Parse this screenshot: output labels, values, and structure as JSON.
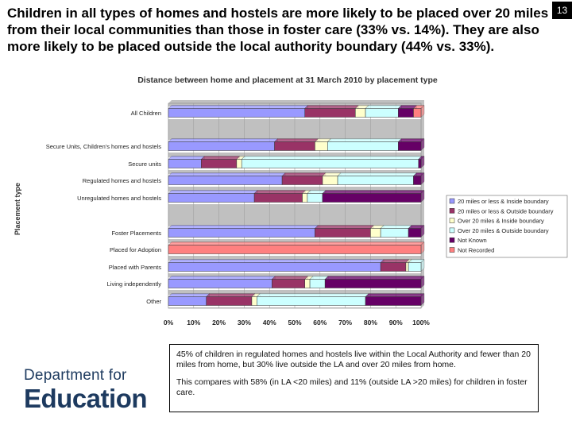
{
  "headline": "Children in all types of homes and hostels are more likely to be placed over 20 miles from their local communities than those in foster care (33% vs. 14%). They are also more likely to be placed outside the local authority boundary (44% vs. 33%).",
  "page_number": "13",
  "note": {
    "p1": "45% of children in regulated homes and hostels live within the Local Authority and fewer than 20 miles from home, but 30% live outside the LA and over 20 miles from home.",
    "p2": "This compares with 58% (in LA <20 miles) and 11% (outside LA >20 miles) for children in foster care."
  },
  "logo": {
    "line1": "Department for",
    "line2": "Education"
  },
  "colors": {
    "s1": "#9999ff",
    "s2": "#993366",
    "s3": "#ffffcc",
    "s4": "#ccffff",
    "s5": "#660066",
    "s6": "#ff8080",
    "plot_bg": "#c0c0c0",
    "band_bg": "#ffffff"
  },
  "chart_data": {
    "type": "bar",
    "orientation": "horizontal",
    "stacked": true,
    "title": "Distance between home and placement at 31 March 2010 by placement type",
    "ylabel": "Placement type",
    "xlabel": "",
    "xlim": [
      0,
      100
    ],
    "x_ticks": [
      "0%",
      "10%",
      "20%",
      "30%",
      "40%",
      "50%",
      "60%",
      "70%",
      "80%",
      "90%",
      "100%"
    ],
    "categories": [
      "All Children",
      "Secure Units, Children's homes and hostels",
      "Secure units",
      "Regulated homes and hostels",
      "Unregulated homes and hostels",
      "Foster Placements",
      "Placed for Adoption",
      "Placed with Parents",
      "Living independently",
      "Other"
    ],
    "series": [
      {
        "name": "20 miles or less & Inside boundary",
        "values": [
          54,
          42,
          13,
          45,
          34,
          58,
          0,
          84,
          41,
          15
        ]
      },
      {
        "name": "20 miles or less & Outside boundary",
        "values": [
          20,
          16,
          14,
          16,
          19,
          22,
          0,
          10,
          13,
          18
        ]
      },
      {
        "name": "Over 20 miles & Inside boundary",
        "values": [
          4,
          5,
          2,
          6,
          2,
          4,
          0,
          1,
          2,
          2
        ]
      },
      {
        "name": "Over 20 miles & Outside boundary",
        "values": [
          13,
          28,
          70,
          30,
          6,
          11,
          0,
          5,
          6,
          43
        ]
      },
      {
        "name": "Not Known",
        "values": [
          6,
          9,
          1,
          3,
          39,
          5,
          0,
          0,
          38,
          22
        ]
      },
      {
        "name": "Not Recorded",
        "values": [
          3,
          0,
          0,
          0,
          0,
          0,
          100,
          0,
          0,
          0
        ]
      }
    ],
    "legend_position": "right"
  }
}
